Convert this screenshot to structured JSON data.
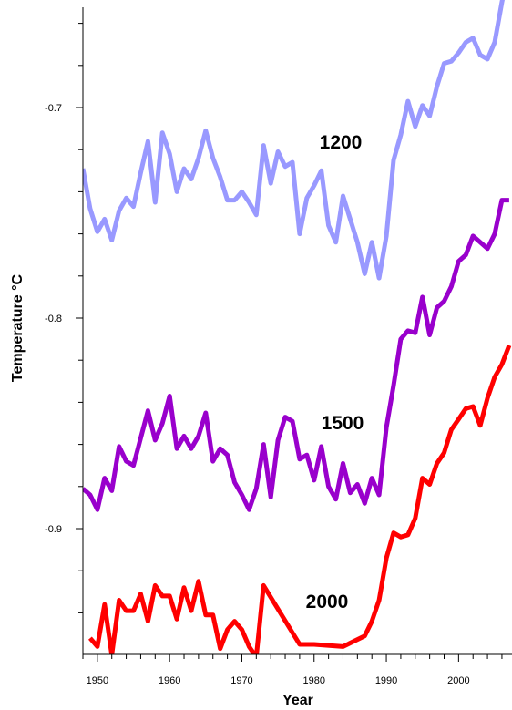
{
  "chart_data": {
    "type": "line",
    "title": "",
    "xlabel": "Year",
    "ylabel": "Temperature °C",
    "xlim": [
      1948,
      2007
    ],
    "ylim": [
      -0.96,
      -0.65
    ],
    "x_ticks": [
      1950,
      1960,
      1970,
      1980,
      1990,
      2000
    ],
    "y_ticks": [
      -0.7,
      -0.8,
      -0.9
    ],
    "y_tick_labels": [
      "-0.7",
      "-0.8",
      "-0.9"
    ],
    "grid": false,
    "legend": "none (series labelled directly on the plot)",
    "series": [
      {
        "name": "1200",
        "color": "#9999ff",
        "x": [
          1948,
          1949,
          1950,
          1951,
          1952,
          1953,
          1954,
          1955,
          1956,
          1957,
          1958,
          1959,
          1960,
          1961,
          1962,
          1963,
          1964,
          1965,
          1966,
          1967,
          1968,
          1969,
          1970,
          1971,
          1972,
          1973,
          1974,
          1975,
          1976,
          1977,
          1978,
          1979,
          1980,
          1981,
          1982,
          1983,
          1984,
          1985,
          1986,
          1987,
          1988,
          1989,
          1990,
          1991,
          1992,
          1993,
          1994,
          1995,
          1996,
          1997,
          1998,
          1999,
          2000,
          2001,
          2002,
          2003,
          2004,
          2005,
          2006,
          2007
        ],
        "values": [
          -0.729,
          -0.748,
          -0.759,
          -0.753,
          -0.763,
          -0.749,
          -0.743,
          -0.747,
          -0.731,
          -0.716,
          -0.745,
          -0.712,
          -0.722,
          -0.74,
          -0.729,
          -0.734,
          -0.724,
          -0.711,
          -0.724,
          -0.733,
          -0.744,
          -0.744,
          -0.74,
          -0.745,
          -0.751,
          -0.718,
          -0.736,
          -0.721,
          -0.728,
          -0.726,
          -0.76,
          -0.743,
          -0.737,
          -0.73,
          -0.756,
          -0.764,
          -0.742,
          -0.753,
          -0.764,
          -0.779,
          -0.764,
          -0.781,
          -0.761,
          -0.725,
          -0.713,
          -0.697,
          -0.709,
          -0.699,
          -0.704,
          -0.69,
          -0.679,
          -0.678,
          -0.674,
          -0.669,
          -0.667,
          -0.675,
          -0.677,
          -0.669,
          -0.65,
          -0.633
        ]
      },
      {
        "name": "1500",
        "color": "#9900cc",
        "x": [
          1948,
          1949,
          1950,
          1951,
          1952,
          1953,
          1954,
          1955,
          1956,
          1957,
          1958,
          1959,
          1960,
          1961,
          1962,
          1963,
          1964,
          1965,
          1966,
          1967,
          1968,
          1969,
          1970,
          1971,
          1972,
          1973,
          1974,
          1975,
          1976,
          1977,
          1978,
          1979,
          1980,
          1981,
          1982,
          1983,
          1984,
          1985,
          1986,
          1987,
          1988,
          1989,
          1990,
          1991,
          1992,
          1993,
          1994,
          1995,
          1996,
          1997,
          1998,
          1999,
          2000,
          2001,
          2002,
          2003,
          2004,
          2005,
          2006,
          2007
        ],
        "values": [
          -0.881,
          -0.884,
          -0.891,
          -0.876,
          -0.882,
          -0.861,
          -0.868,
          -0.87,
          -0.857,
          -0.844,
          -0.858,
          -0.85,
          -0.837,
          -0.862,
          -0.856,
          -0.862,
          -0.856,
          -0.845,
          -0.868,
          -0.862,
          -0.865,
          -0.878,
          -0.884,
          -0.891,
          -0.881,
          -0.86,
          -0.885,
          -0.858,
          -0.847,
          -0.849,
          -0.867,
          -0.865,
          -0.877,
          -0.861,
          -0.88,
          -0.886,
          -0.869,
          -0.883,
          -0.879,
          -0.888,
          -0.876,
          -0.884,
          -0.852,
          -0.832,
          -0.81,
          -0.806,
          -0.807,
          -0.79,
          -0.808,
          -0.795,
          -0.792,
          -0.785,
          -0.773,
          -0.77,
          -0.761,
          -0.764,
          -0.767,
          -0.76,
          -0.744,
          -0.744
        ]
      },
      {
        "name": "2000",
        "color": "#ff0000",
        "x": [
          1949,
          1950,
          1951,
          1952,
          1953,
          1954,
          1955,
          1956,
          1957,
          1958,
          1959,
          1960,
          1961,
          1962,
          1963,
          1964,
          1965,
          1966,
          1967,
          1968,
          1969,
          1970,
          1971,
          1972,
          1973,
          1978,
          1980,
          1984,
          1987,
          1988,
          1989,
          1990,
          1991,
          1992,
          1993,
          1994,
          1995,
          1996,
          1997,
          1998,
          1999,
          2000,
          2001,
          2002,
          2003,
          2004,
          2005,
          2006,
          2007
        ],
        "values": [
          -0.952,
          -0.956,
          -0.936,
          -0.96,
          -0.934,
          -0.939,
          -0.939,
          -0.931,
          -0.944,
          -0.927,
          -0.932,
          -0.932,
          -0.943,
          -0.928,
          -0.939,
          -0.925,
          -0.941,
          -0.941,
          -0.957,
          -0.948,
          -0.944,
          -0.948,
          -0.956,
          -0.961,
          -0.927,
          -0.955,
          -0.955,
          -0.956,
          -0.951,
          -0.944,
          -0.934,
          -0.914,
          -0.902,
          -0.904,
          -0.903,
          -0.895,
          -0.876,
          -0.879,
          -0.869,
          -0.864,
          -0.853,
          -0.848,
          -0.843,
          -0.842,
          -0.851,
          -0.838,
          -0.828,
          -0.822,
          -0.813
        ]
      }
    ]
  }
}
